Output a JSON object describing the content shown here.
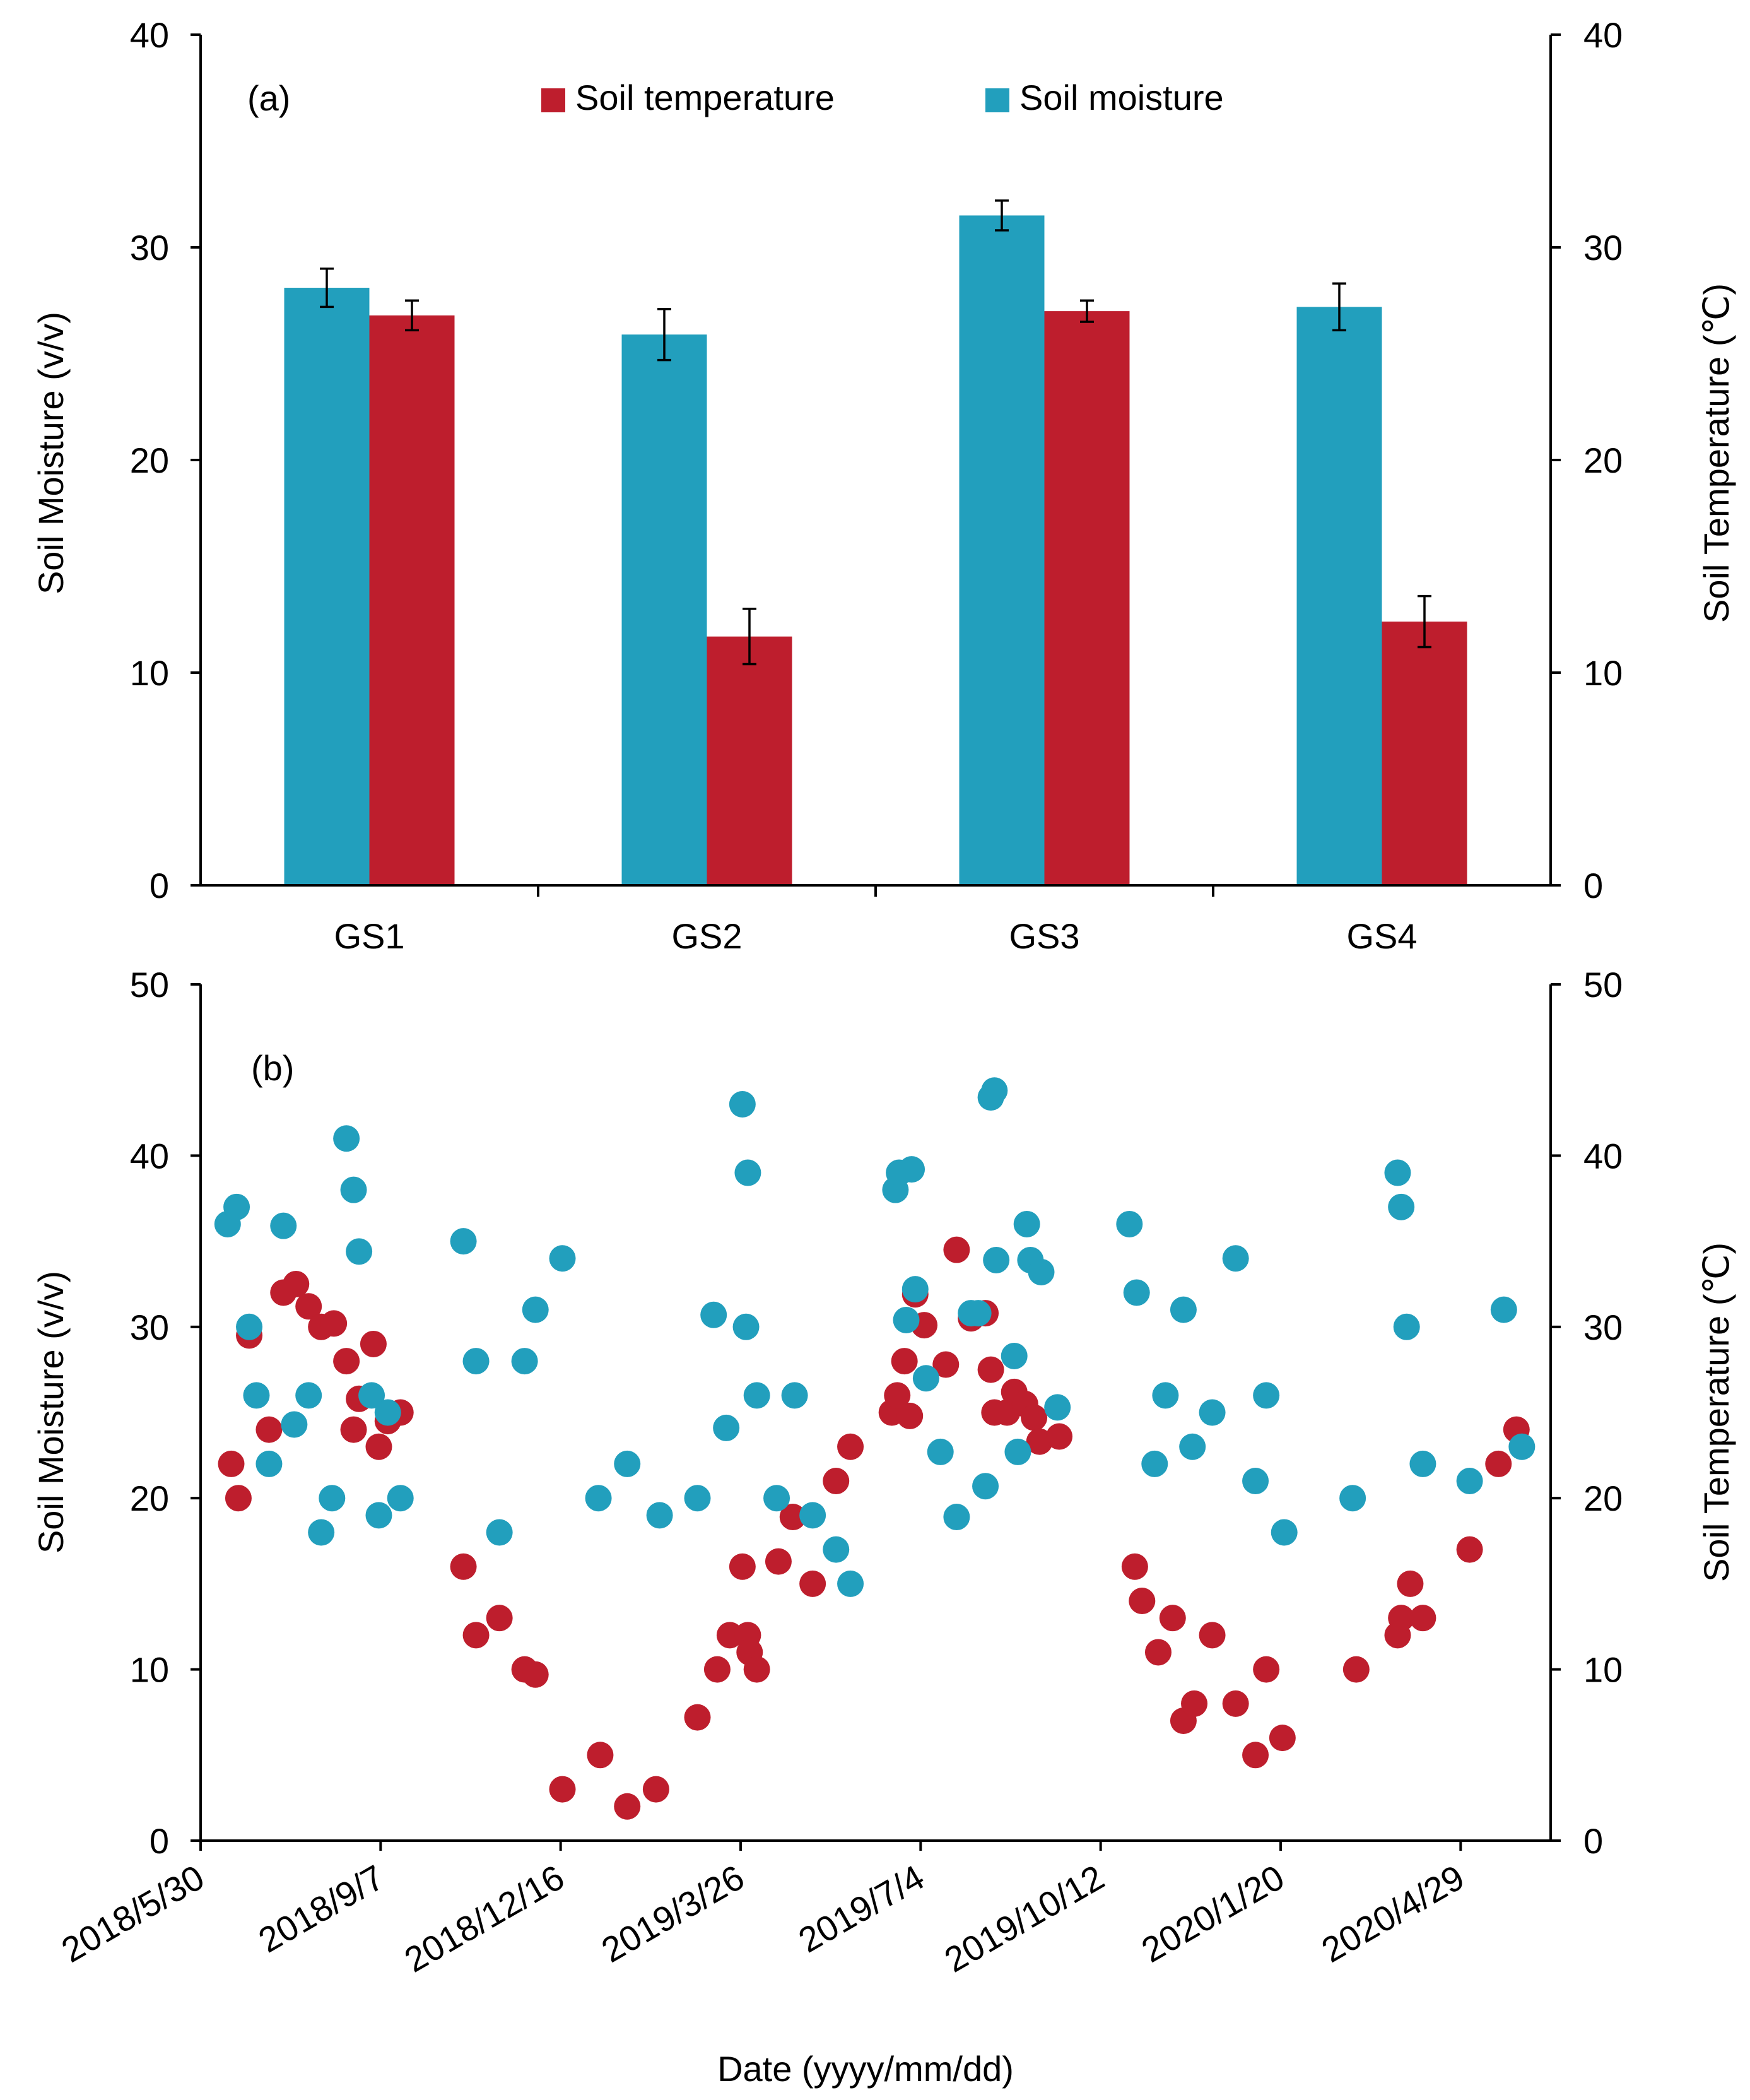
{
  "colors": {
    "temperature": "#be1e2d",
    "moisture": "#229fbd"
  },
  "chart_data": [
    {
      "id": "a",
      "type": "bar",
      "panel_label": "(a)",
      "categories": [
        "GS1",
        "GS2",
        "GS3",
        "GS4"
      ],
      "series": [
        {
          "name": "Soil moisture",
          "axis": "left",
          "values": [
            28.1,
            25.9,
            31.5,
            27.2
          ],
          "errors": [
            0.9,
            1.2,
            0.7,
            1.1
          ]
        },
        {
          "name": "Soil temperature",
          "axis": "right",
          "values": [
            26.8,
            11.7,
            27.0,
            12.4
          ],
          "errors": [
            0.7,
            1.3,
            0.5,
            1.2
          ]
        }
      ],
      "legend": [
        "Soil temperature",
        "Soil moisture"
      ],
      "legend_position": "top-center",
      "ylabel": "Soil Moisture (v/v)",
      "ylabel_right": "Soil Temperature (℃)",
      "ylim": [
        0,
        40
      ],
      "ylim_right": [
        0,
        40
      ],
      "yticks": [
        "0",
        "10",
        "20",
        "30",
        "40"
      ],
      "yticks_right": [
        "0",
        "10",
        "20",
        "30",
        "40"
      ]
    },
    {
      "id": "b",
      "type": "scatter",
      "panel_label": "(b)",
      "xlabel": "Date (yyyy/mm/dd)",
      "ylabel": "Soil Moisture (v/v)",
      "ylabel_right": "Soil Temperature (℃)",
      "ylim": [
        0,
        50
      ],
      "ylim_right": [
        0,
        50
      ],
      "xlim_days": [
        0,
        750
      ],
      "xtick_labels": [
        "2018/5/30",
        "2018/9/7",
        "2018/12/16",
        "2019/3/26",
        "2019/7/4",
        "2019/10/12",
        "2020/1/20",
        "2020/4/29"
      ],
      "xtick_days": [
        0,
        100,
        200,
        300,
        400,
        500,
        600,
        700
      ],
      "yticks": [
        "0",
        "10",
        "20",
        "30",
        "40",
        "50"
      ],
      "yticks_right": [
        "0",
        "10",
        "20",
        "30",
        "40",
        "50"
      ],
      "series": [
        {
          "name": "Soil temperature",
          "axis": "right",
          "points": [
            [
              17,
              22
            ],
            [
              21,
              20
            ],
            [
              27,
              29.5
            ],
            [
              38,
              24
            ],
            [
              46,
              32
            ],
            [
              53,
              32.5
            ],
            [
              60,
              31.2
            ],
            [
              67,
              30
            ],
            [
              74,
              30.2
            ],
            [
              81,
              28
            ],
            [
              85,
              24
            ],
            [
              88,
              25.8
            ],
            [
              96,
              29
            ],
            [
              99,
              23
            ],
            [
              104,
              24.5
            ],
            [
              111,
              25
            ],
            [
              146,
              16
            ],
            [
              153,
              12
            ],
            [
              166,
              13
            ],
            [
              180,
              10
            ],
            [
              186,
              9.7
            ],
            [
              201,
              3
            ],
            [
              222,
              5
            ],
            [
              237,
              2
            ],
            [
              253,
              3
            ],
            [
              276,
              7.2
            ],
            [
              287,
              10
            ],
            [
              294,
              12
            ],
            [
              301,
              16
            ],
            [
              304,
              12
            ],
            [
              305,
              11
            ],
            [
              309,
              10
            ],
            [
              321,
              16.3
            ],
            [
              329,
              18.9
            ],
            [
              340,
              15
            ],
            [
              353,
              21
            ],
            [
              361,
              23
            ],
            [
              384,
              25
            ],
            [
              387,
              26
            ],
            [
              391,
              28
            ],
            [
              394,
              24.8
            ],
            [
              397,
              31.9
            ],
            [
              402,
              30.1
            ],
            [
              414,
              27.8
            ],
            [
              420,
              34.5
            ],
            [
              428,
              30.5
            ],
            [
              436,
              30.8
            ],
            [
              439,
              27.5
            ],
            [
              441,
              25
            ],
            [
              448,
              25
            ],
            [
              452,
              26.2
            ],
            [
              458,
              25.5
            ],
            [
              463,
              24.7
            ],
            [
              466,
              23.3
            ],
            [
              477,
              23.6
            ],
            [
              519,
              16
            ],
            [
              523,
              14
            ],
            [
              532,
              11
            ],
            [
              540,
              13
            ],
            [
              546,
              7
            ],
            [
              552,
              8
            ],
            [
              562,
              12
            ],
            [
              575,
              8
            ],
            [
              586,
              5
            ],
            [
              592,
              10
            ],
            [
              601,
              6
            ],
            [
              642,
              10
            ],
            [
              665,
              12
            ],
            [
              667,
              13
            ],
            [
              672,
              15
            ],
            [
              679,
              13
            ],
            [
              705,
              17
            ],
            [
              721,
              22
            ],
            [
              731,
              24
            ]
          ]
        },
        {
          "name": "Soil moisture",
          "axis": "left",
          "points": [
            [
              15,
              36
            ],
            [
              20,
              37
            ],
            [
              27,
              30
            ],
            [
              31,
              26
            ],
            [
              38,
              22
            ],
            [
              46,
              35.9
            ],
            [
              52,
              24.3
            ],
            [
              60,
              26
            ],
            [
              67,
              18
            ],
            [
              73,
              20
            ],
            [
              81,
              41
            ],
            [
              85,
              38
            ],
            [
              88,
              34.4
            ],
            [
              95,
              26
            ],
            [
              99,
              19
            ],
            [
              104,
              25
            ],
            [
              111,
              20
            ],
            [
              146,
              35
            ],
            [
              153,
              28
            ],
            [
              166,
              18
            ],
            [
              180,
              28
            ],
            [
              186,
              31
            ],
            [
              201,
              34
            ],
            [
              221,
              20
            ],
            [
              237,
              22
            ],
            [
              255,
              19
            ],
            [
              276,
              20
            ],
            [
              285,
              30.7
            ],
            [
              292,
              24.1
            ],
            [
              301,
              43
            ],
            [
              303,
              30
            ],
            [
              304,
              39
            ],
            [
              309,
              26
            ],
            [
              320,
              20
            ],
            [
              330,
              26
            ],
            [
              340,
              19
            ],
            [
              353,
              17
            ],
            [
              361,
              15
            ],
            [
              386,
              38
            ],
            [
              388,
              39
            ],
            [
              392,
              30.4
            ],
            [
              395,
              39.2
            ],
            [
              397,
              32.2
            ],
            [
              403,
              27
            ],
            [
              411,
              22.7
            ],
            [
              420,
              18.9
            ],
            [
              428,
              30.8
            ],
            [
              432,
              30.8
            ],
            [
              436,
              20.7
            ],
            [
              439,
              43.4
            ],
            [
              441,
              43.8
            ],
            [
              442,
              33.9
            ],
            [
              452,
              28.3
            ],
            [
              454,
              22.7
            ],
            [
              459,
              36
            ],
            [
              461,
              33.9
            ],
            [
              467,
              33.2
            ],
            [
              476,
              25.3
            ],
            [
              516,
              36
            ],
            [
              520,
              32
            ],
            [
              530,
              22
            ],
            [
              536,
              26
            ],
            [
              546,
              31
            ],
            [
              551,
              23
            ],
            [
              562,
              25
            ],
            [
              575,
              34
            ],
            [
              586,
              21
            ],
            [
              592,
              26
            ],
            [
              602,
              18
            ],
            [
              640,
              20
            ],
            [
              665,
              39
            ],
            [
              667,
              37
            ],
            [
              670,
              30
            ],
            [
              679,
              22
            ],
            [
              705,
              21
            ],
            [
              724,
              31
            ],
            [
              734,
              23
            ]
          ]
        }
      ]
    }
  ]
}
